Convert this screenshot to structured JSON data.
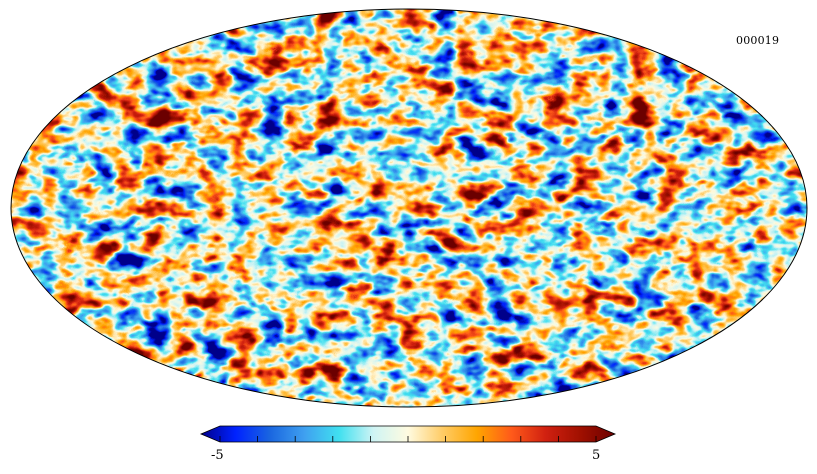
{
  "map": {
    "projection": "mollweide",
    "label": "000019"
  },
  "colorbar": {
    "min_label": "-5",
    "max_label": "5",
    "min": -5,
    "max": 5,
    "ticks": [
      -5,
      -4,
      -3,
      -2,
      -1,
      0,
      1,
      2,
      3,
      4,
      5
    ],
    "colormap": [
      "#00008b",
      "#0022ff",
      "#1a66e0",
      "#3fa0f0",
      "#40e0f0",
      "#cff4f4",
      "#fffbe0",
      "#ffcc66",
      "#ffa500",
      "#ff5a1a",
      "#d02010",
      "#a01000",
      "#6b0000"
    ]
  }
}
